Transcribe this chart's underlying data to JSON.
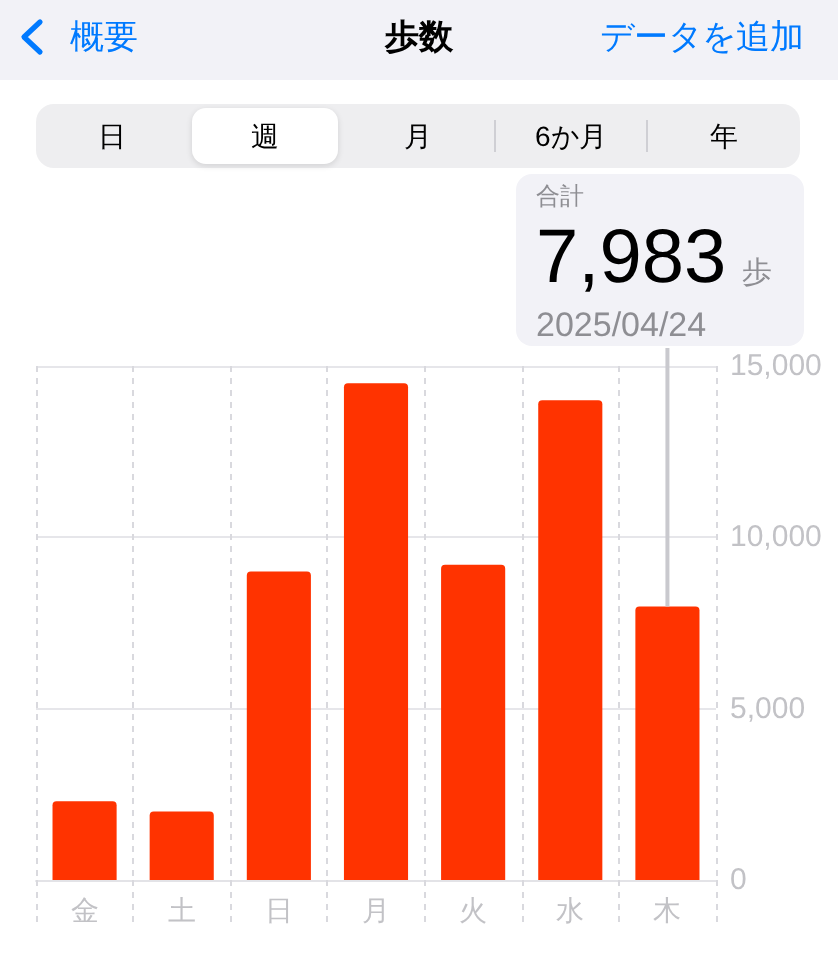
{
  "chart_data": {
    "type": "bar",
    "title": "歩数",
    "categories": [
      "金",
      "土",
      "日",
      "月",
      "火",
      "水",
      "木"
    ],
    "values": [
      2300,
      2000,
      9000,
      14500,
      9200,
      14000,
      7983
    ],
    "color": "#ff3300",
    "value_labels": [
      null,
      null,
      null,
      null,
      null,
      null,
      "7,983"
    ],
    "ylim": [
      0,
      15000
    ],
    "yticks": [
      0,
      {
        "value": 5000,
        "label": "5,000"
      },
      {
        "value": 10000,
        "label": "10,000"
      },
      {
        "value": 15000,
        "label": "15,000"
      }
    ],
    "grid": true,
    "annotations": [
      "概要",
      "データを追加",
      "日",
      "週",
      "月",
      "6か月",
      "年",
      "合計",
      "歩",
      {
        "text": "2025/04/24",
        "x": "木",
        "y": 7983
      }
    ]
  }
}
